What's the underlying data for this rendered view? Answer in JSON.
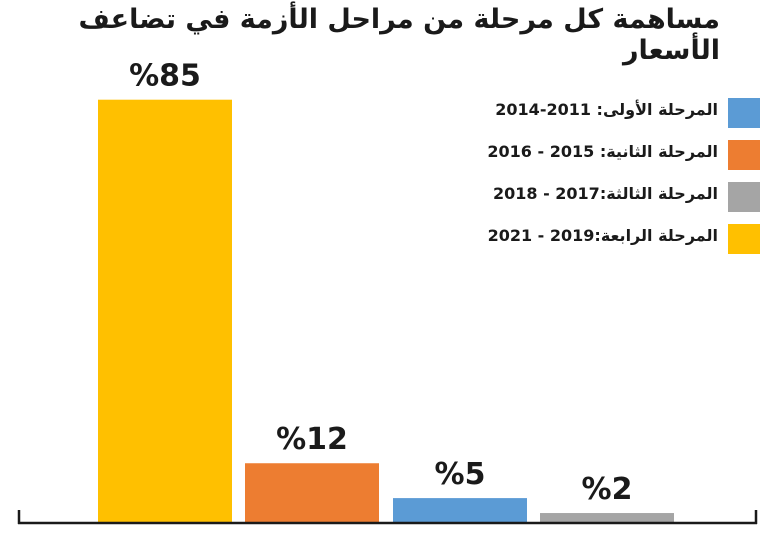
{
  "chart_data": {
    "type": "bar",
    "title": "مساهمة كل مرحلة من مراحل الأزمة في تضاعف الأسعار",
    "categories": [
      "المرحلة الرابعة:2019 - 2021",
      "المرحلة الثانية: 2015 - 2016",
      "المرحلة الأولى: 2011-2014",
      "المرحلة الثالثة:2017 - 2018"
    ],
    "values": [
      85,
      12,
      5,
      2
    ],
    "value_labels": [
      "%85",
      "%12",
      "%5",
      "%2"
    ],
    "bar_colors": [
      "#FFC000",
      "#ED7D31",
      "#5B9BD5",
      "#A5A5A5"
    ],
    "unit": "%",
    "ylim": [
      0,
      100
    ],
    "grid": false,
    "legend_position": "top-right",
    "legend": [
      {
        "label": "المرحلة الأولى: 2011-2014",
        "color": "#5B9BD5"
      },
      {
        "label": "المرحلة الثانية: 2015 - 2016",
        "color": "#ED7D31"
      },
      {
        "label": "المرحلة الثالثة:2017 - 2018",
        "color": "#A5A5A5"
      },
      {
        "label": "المرحلة الرابعة:2019 - 2021",
        "color": "#FFC000"
      }
    ]
  }
}
